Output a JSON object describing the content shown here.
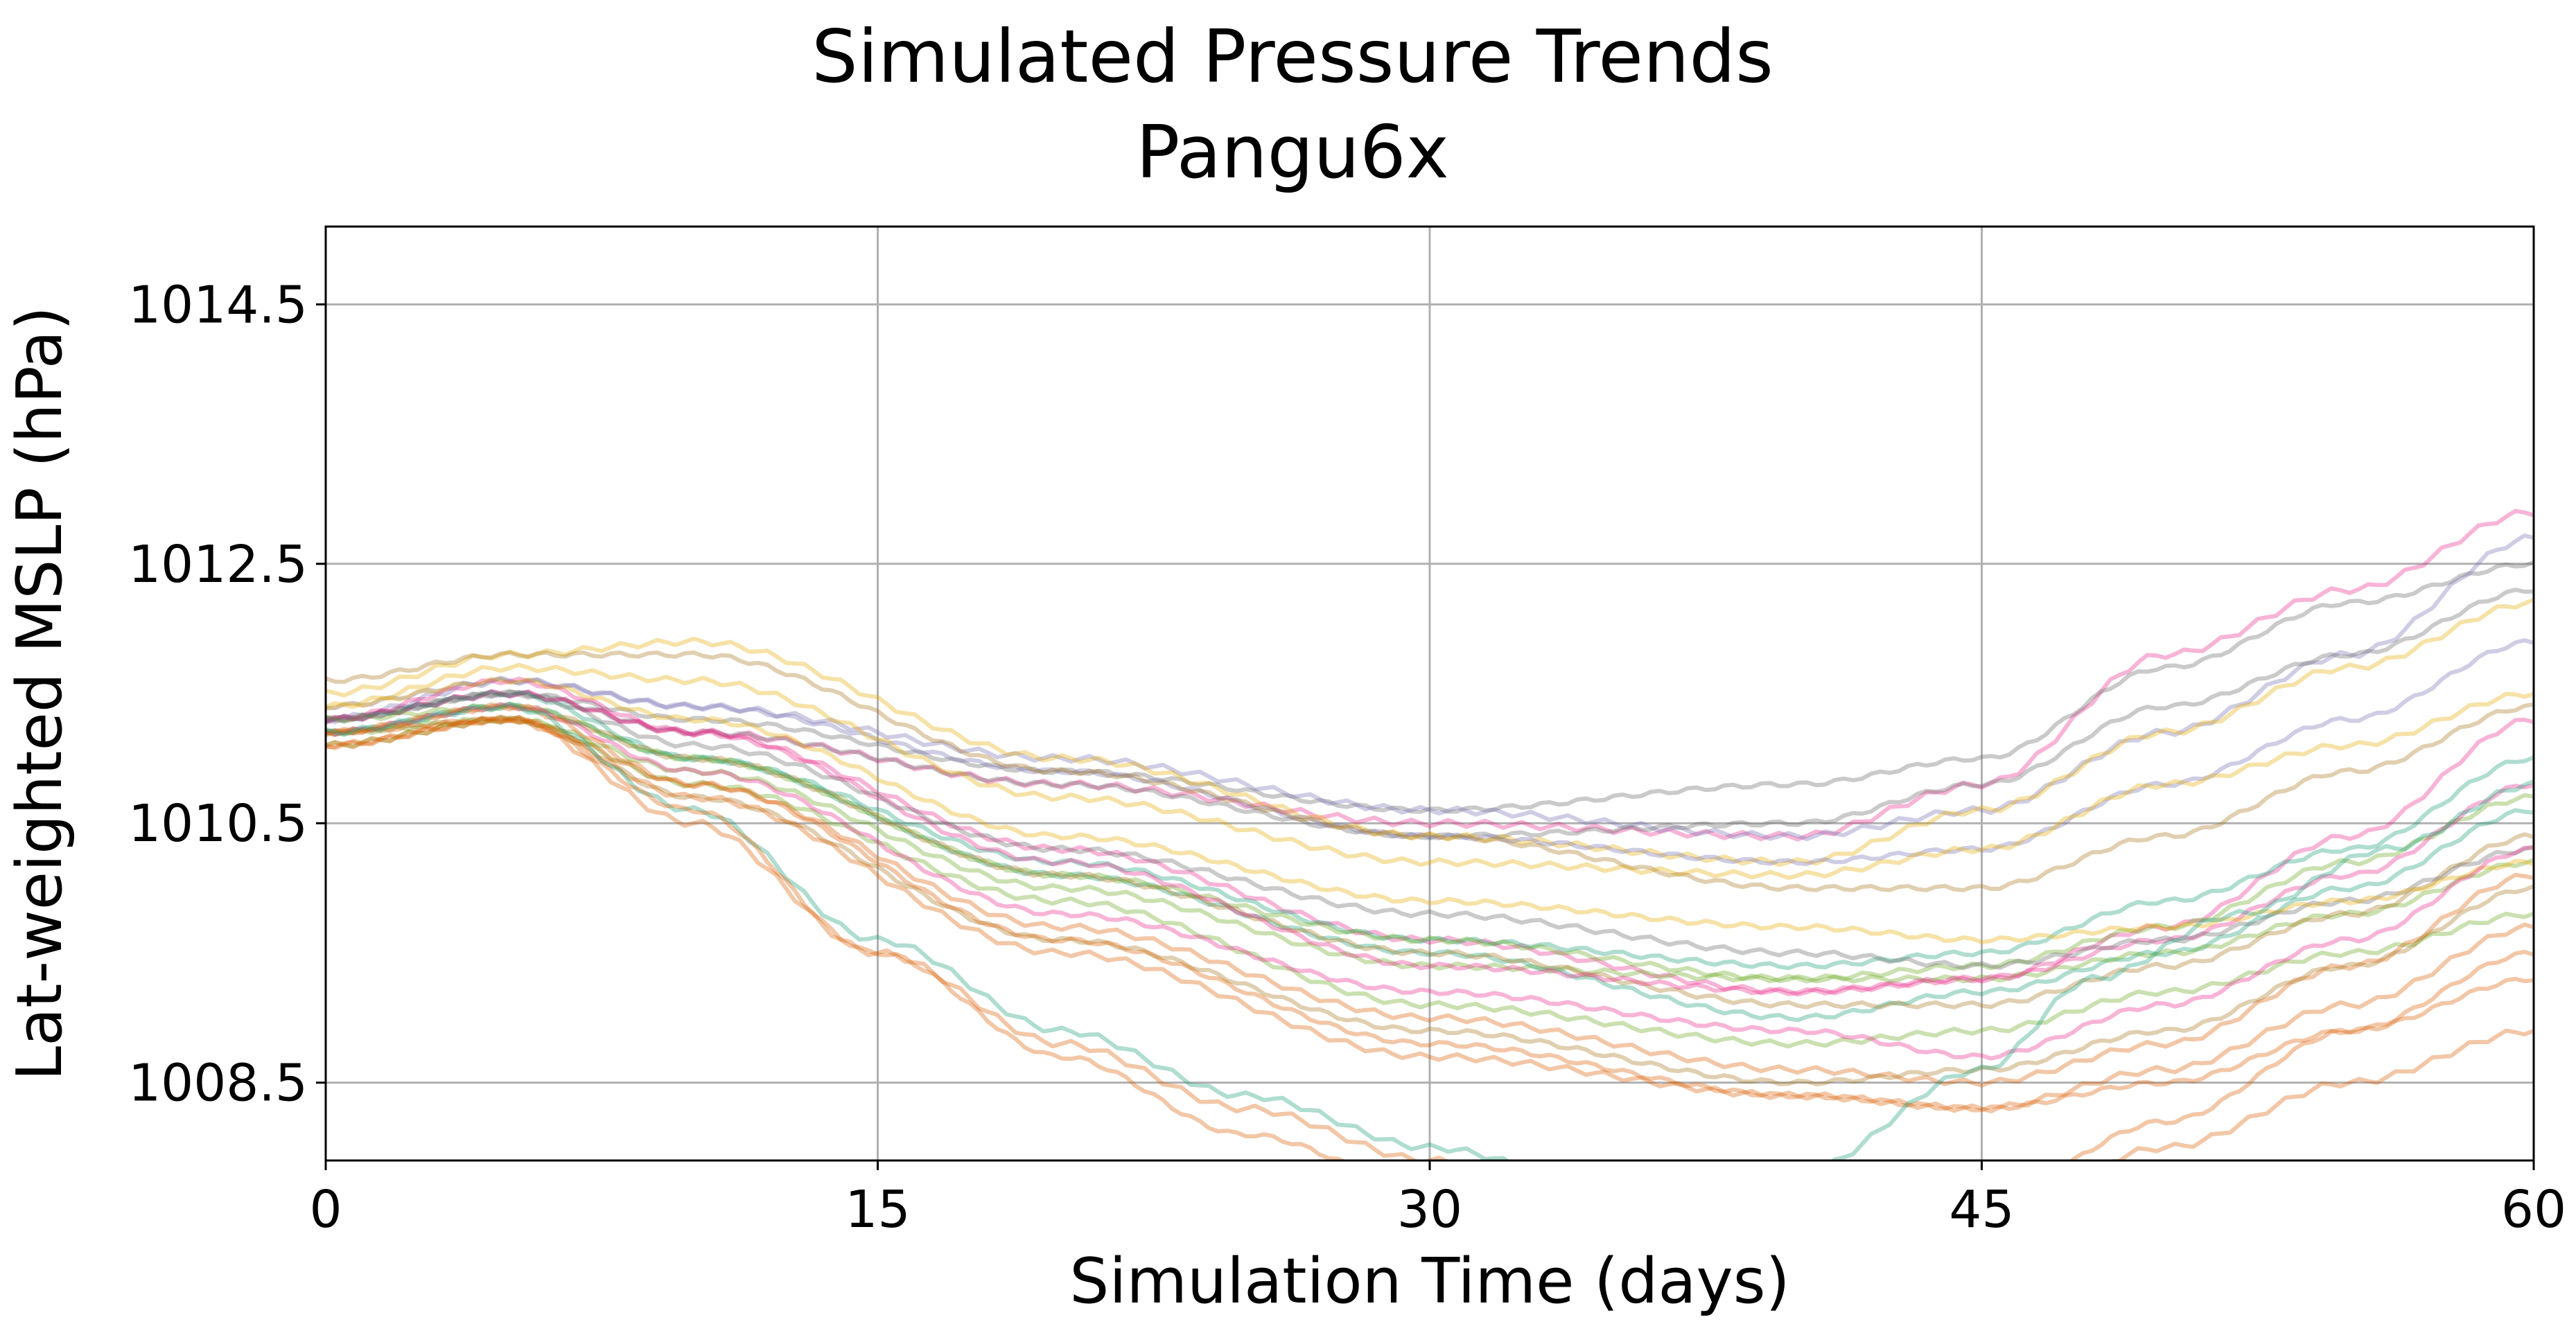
{
  "chart_data": {
    "type": "line",
    "title": "Simulated Pressure Trends",
    "subtitle": "Pangu6x",
    "xlabel": "Simulation Time (days)",
    "ylabel": "Lat-weighted MSLP (hPa)",
    "xlim": [
      0,
      60
    ],
    "ylim": [
      1007.9,
      1015.1
    ],
    "xticks": [
      0,
      15,
      30,
      45,
      60
    ],
    "xtick_labels": [
      "0",
      "15",
      "30",
      "45",
      "60"
    ],
    "yticks": [
      1008.5,
      1010.5,
      1012.5,
      1014.5
    ],
    "ytick_labels": [
      "1008.5",
      "1010.5",
      "1012.5",
      "1014.5"
    ],
    "grid": true,
    "legend": "none",
    "line_opacity": 0.35,
    "oscillation_amplitude": 0.05,
    "colors": {
      "teal": "#1b9e77",
      "orange": "#d95f02",
      "purple": "#7570b3",
      "pink": "#e7298a",
      "green": "#66a61e",
      "gold": "#e6ab02",
      "brown": "#a6761d",
      "gray": "#666666"
    },
    "series": [
      {
        "color": "pink",
        "x": [
          0,
          5,
          10,
          20,
          30,
          40,
          45,
          50,
          55,
          60
        ],
        "y": [
          1011.3,
          1011.5,
          1011.2,
          1010.8,
          1010.5,
          1010.4,
          1010.8,
          1011.8,
          1012.3,
          1012.9
        ]
      },
      {
        "color": "gray",
        "x": [
          0,
          5,
          10,
          20,
          30,
          40,
          45,
          50,
          55,
          60
        ],
        "y": [
          1011.3,
          1011.5,
          1011.3,
          1010.9,
          1010.6,
          1010.8,
          1011.0,
          1011.7,
          1012.2,
          1012.5
        ]
      },
      {
        "color": "purple",
        "x": [
          0,
          5,
          10,
          20,
          30,
          40,
          45,
          50,
          55,
          60
        ],
        "y": [
          1011.3,
          1011.6,
          1011.4,
          1011.0,
          1010.6,
          1010.4,
          1010.6,
          1011.2,
          1011.8,
          1012.7
        ]
      },
      {
        "color": "gray",
        "x": [
          0,
          5,
          10,
          20,
          30,
          40,
          45,
          50,
          55,
          60
        ],
        "y": [
          1011.3,
          1011.5,
          1011.2,
          1010.8,
          1010.4,
          1010.5,
          1010.8,
          1011.4,
          1011.8,
          1012.3
        ]
      },
      {
        "color": "gold",
        "x": [
          0,
          5,
          10,
          20,
          30,
          40,
          45,
          50,
          55,
          60
        ],
        "y": [
          1011.5,
          1011.8,
          1011.9,
          1011.0,
          1010.4,
          1010.2,
          1010.6,
          1011.2,
          1011.7,
          1012.2
        ]
      },
      {
        "color": "purple",
        "x": [
          0,
          5,
          10,
          20,
          30,
          40,
          45,
          50,
          55,
          60
        ],
        "y": [
          1011.4,
          1011.6,
          1011.4,
          1010.9,
          1010.4,
          1010.2,
          1010.3,
          1010.8,
          1011.3,
          1011.9
        ]
      },
      {
        "color": "gold",
        "x": [
          0,
          5,
          10,
          20,
          30,
          40,
          45,
          50,
          55,
          60
        ],
        "y": [
          1011.4,
          1011.7,
          1011.6,
          1010.7,
          1010.2,
          1010.1,
          1010.3,
          1010.8,
          1011.1,
          1011.5
        ]
      },
      {
        "color": "brown",
        "x": [
          0,
          5,
          10,
          20,
          30,
          40,
          45,
          50,
          55,
          60
        ],
        "y": [
          1011.6,
          1011.8,
          1011.8,
          1010.9,
          1010.4,
          1010.0,
          1010.0,
          1010.4,
          1010.9,
          1011.4
        ]
      },
      {
        "color": "pink",
        "x": [
          0,
          5,
          10,
          20,
          30,
          40,
          45,
          50,
          55,
          60
        ],
        "y": [
          1011.3,
          1011.5,
          1011.2,
          1010.3,
          1009.6,
          1009.2,
          1009.3,
          1009.7,
          1010.4,
          1011.3
        ]
      },
      {
        "color": "teal",
        "x": [
          0,
          5,
          10,
          20,
          30,
          40,
          45,
          50,
          55,
          60
        ],
        "y": [
          1011.2,
          1011.4,
          1011.0,
          1010.2,
          1009.6,
          1009.4,
          1009.5,
          1009.9,
          1010.3,
          1011.0
        ]
      },
      {
        "color": "green",
        "x": [
          0,
          5,
          10,
          20,
          30,
          40,
          45,
          50,
          55,
          60
        ],
        "y": [
          1011.2,
          1011.3,
          1010.9,
          1010.0,
          1009.4,
          1009.3,
          1009.4,
          1009.7,
          1010.2,
          1010.7
        ]
      },
      {
        "color": "teal",
        "x": [
          0,
          5,
          10,
          20,
          30,
          40,
          45,
          50,
          55,
          60
        ],
        "y": [
          1011.3,
          1011.5,
          1011.0,
          1010.1,
          1009.5,
          1009.0,
          1009.2,
          1009.5,
          1010.0,
          1010.6
        ]
      },
      {
        "color": "green",
        "x": [
          0,
          5,
          10,
          20,
          30,
          40,
          45,
          50,
          55,
          60
        ],
        "y": [
          1011.3,
          1011.4,
          1011.0,
          1010.1,
          1009.6,
          1009.3,
          1009.3,
          1009.5,
          1009.8,
          1010.2
        ]
      },
      {
        "color": "brown",
        "x": [
          0,
          5,
          10,
          20,
          30,
          40,
          45,
          50,
          55,
          60
        ],
        "y": [
          1011.2,
          1011.4,
          1011.0,
          1010.1,
          1009.5,
          1009.1,
          1009.1,
          1009.4,
          1009.8,
          1010.4
        ]
      },
      {
        "color": "pink",
        "x": [
          0,
          5,
          10,
          20,
          30,
          40,
          45,
          50,
          55,
          60
        ],
        "y": [
          1011.3,
          1011.6,
          1011.2,
          1010.2,
          1009.4,
          1009.2,
          1009.3,
          1009.6,
          1010.1,
          1010.8
        ]
      },
      {
        "color": "gray",
        "x": [
          0,
          5,
          10,
          20,
          30,
          40,
          45,
          50,
          55,
          60
        ],
        "y": [
          1011.3,
          1011.5,
          1011.1,
          1010.3,
          1009.8,
          1009.5,
          1009.4,
          1009.6,
          1009.9,
          1010.3
        ]
      },
      {
        "color": "gold",
        "x": [
          0,
          5,
          10,
          20,
          30,
          40,
          45,
          50,
          55,
          60
        ],
        "y": [
          1011.4,
          1011.6,
          1011.3,
          1010.4,
          1009.9,
          1009.7,
          1009.6,
          1009.7,
          1009.9,
          1010.2
        ]
      },
      {
        "color": "green",
        "x": [
          0,
          5,
          10,
          20,
          30,
          40,
          45,
          50,
          55,
          60
        ],
        "y": [
          1011.1,
          1011.3,
          1010.8,
          1009.9,
          1009.1,
          1008.8,
          1008.9,
          1009.2,
          1009.5,
          1009.8
        ]
      },
      {
        "color": "pink",
        "x": [
          0,
          5,
          10,
          20,
          30,
          40,
          45,
          50,
          55,
          60
        ],
        "y": [
          1011.2,
          1011.4,
          1010.9,
          1009.8,
          1009.2,
          1008.9,
          1008.7,
          1009.1,
          1009.6,
          1010.3
        ]
      },
      {
        "color": "orange",
        "x": [
          0,
          5,
          10,
          20,
          30,
          40,
          45,
          50,
          55,
          60
        ],
        "y": [
          1011.2,
          1011.4,
          1010.8,
          1009.7,
          1009.0,
          1008.6,
          1008.5,
          1008.8,
          1009.4,
          1010.1
        ]
      },
      {
        "color": "brown",
        "x": [
          0,
          5,
          10,
          20,
          30,
          40,
          45,
          50,
          55,
          60
        ],
        "y": [
          1011.2,
          1011.3,
          1010.7,
          1009.6,
          1008.9,
          1008.5,
          1008.6,
          1008.9,
          1009.4,
          1010.0
        ]
      },
      {
        "color": "orange",
        "x": [
          0,
          5,
          10,
          20,
          30,
          40,
          45,
          50,
          55,
          60
        ],
        "y": [
          1011.1,
          1011.3,
          1010.7,
          1009.5,
          1008.7,
          1008.4,
          1008.3,
          1008.6,
          1009.1,
          1009.7
        ]
      },
      {
        "color": "orange",
        "x": [
          0,
          5,
          10,
          20,
          30,
          40,
          45,
          50,
          55,
          60
        ],
        "y": [
          1011.2,
          1011.3,
          1010.8,
          1009.6,
          1008.8,
          1008.4,
          1008.3,
          1008.5,
          1008.9,
          1009.3
        ]
      },
      {
        "color": "teal",
        "x": [
          0,
          5,
          10,
          15,
          20,
          25,
          30,
          35,
          40,
          45,
          48,
          52,
          56,
          60
        ],
        "y": [
          1011.2,
          1011.4,
          1010.6,
          1009.6,
          1008.9,
          1008.4,
          1008.0,
          1007.7,
          1007.8,
          1008.6,
          1009.3,
          1009.8,
          1010.3,
          1010.8
        ]
      },
      {
        "color": "orange",
        "x": [
          0,
          5,
          10,
          15,
          20,
          25,
          30,
          35,
          40,
          45,
          50,
          55,
          60
        ],
        "y": [
          1011.1,
          1011.3,
          1010.6,
          1009.5,
          1008.7,
          1008.1,
          1007.7,
          1007.4,
          1007.4,
          1007.6,
          1008.2,
          1008.9,
          1009.5
        ]
      },
      {
        "color": "orange",
        "x": [
          0,
          5,
          10,
          15,
          20,
          25,
          30,
          35,
          40,
          45,
          50,
          55,
          60
        ],
        "y": [
          1011.1,
          1011.3,
          1010.5,
          1009.5,
          1008.8,
          1008.3,
          1007.9,
          1007.5,
          1007.4,
          1007.5,
          1008.0,
          1008.5,
          1008.9
        ]
      }
    ]
  }
}
